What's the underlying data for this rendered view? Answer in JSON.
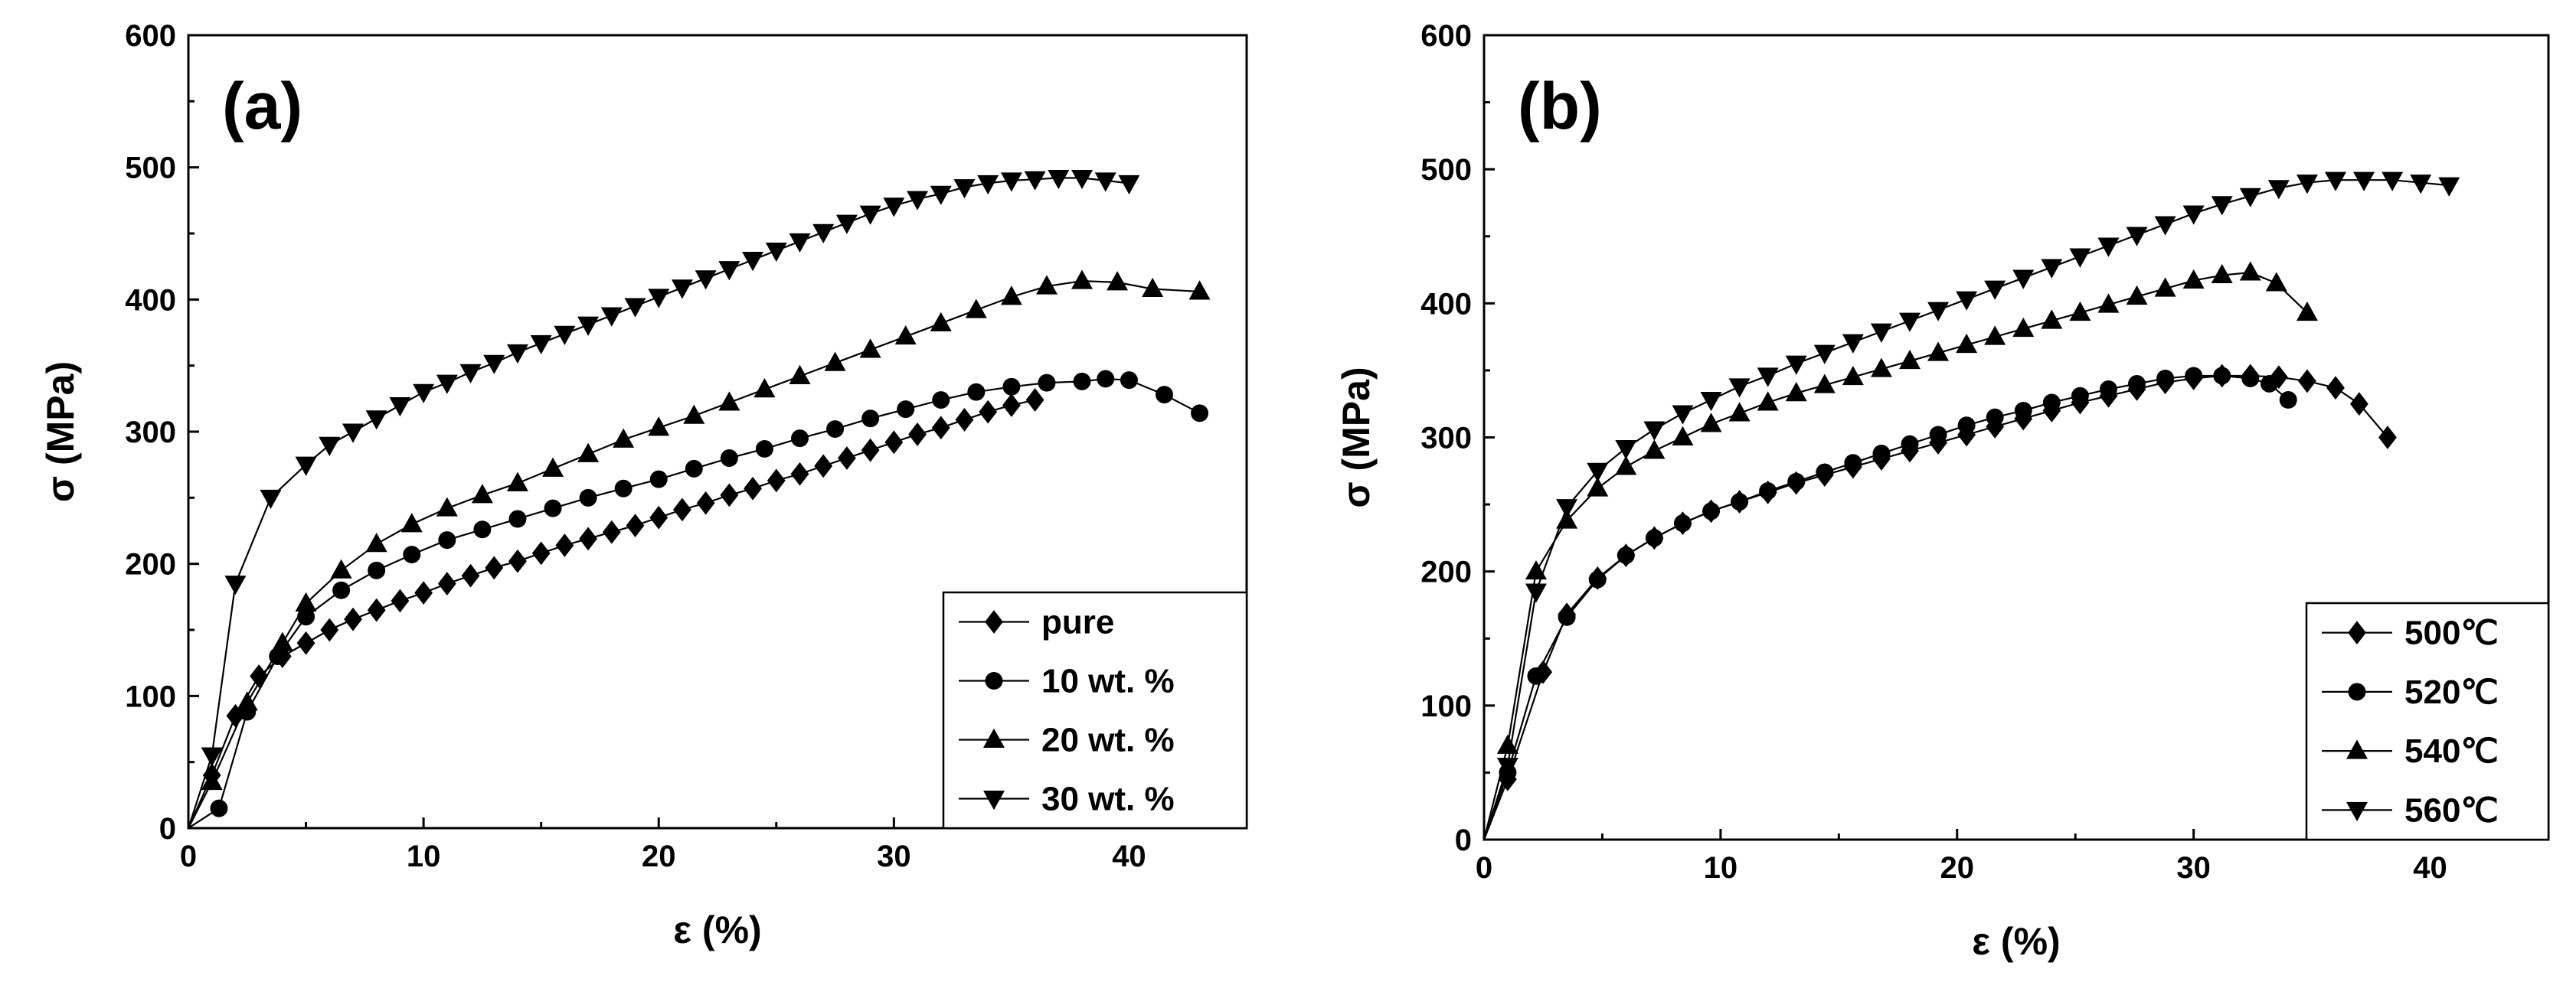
{
  "chart_data": [
    {
      "type": "line",
      "panel_label": "(a)",
      "xlabel": "ε (%)",
      "ylabel": "σ (MPa)",
      "xlim": [
        0,
        45
      ],
      "ylim": [
        0,
        600
      ],
      "xticks": [
        0,
        10,
        20,
        30,
        40
      ],
      "yticks": [
        0,
        100,
        200,
        300,
        400,
        500,
        600
      ],
      "legend_position": "bottom-right",
      "series": [
        {
          "name": "pure",
          "marker": "diamond",
          "x": [
            0,
            1,
            2,
            3,
            4,
            5,
            6,
            7,
            8,
            9,
            10,
            11,
            12,
            13,
            14,
            15,
            16,
            17,
            18,
            19,
            20,
            21,
            22,
            23,
            24,
            25,
            26,
            27,
            28,
            29,
            30,
            31,
            32,
            33,
            34,
            35,
            36
          ],
          "y": [
            0,
            40,
            85,
            115,
            130,
            140,
            150,
            158,
            165,
            172,
            178,
            185,
            191,
            197,
            202,
            208,
            214,
            219,
            224,
            229,
            235,
            241,
            246,
            252,
            257,
            263,
            268,
            274,
            280,
            286,
            292,
            298,
            303,
            309,
            315,
            320,
            324
          ]
        },
        {
          "name": "10 wt. %",
          "marker": "circle",
          "x": [
            0,
            1.3,
            2.5,
            3.8,
            5,
            6.5,
            8,
            9.5,
            11,
            12.5,
            14,
            15.5,
            17,
            18.5,
            20,
            21.5,
            23,
            24.5,
            26,
            27.5,
            29,
            30.5,
            32,
            33.5,
            35,
            36.5,
            38,
            39,
            40,
            41.5,
            43
          ],
          "y": [
            0,
            15,
            88,
            130,
            160,
            180,
            195,
            207,
            218,
            226,
            234,
            242,
            250,
            257,
            264,
            272,
            280,
            287,
            295,
            302,
            310,
            317,
            324,
            330,
            334,
            337,
            338,
            340,
            339,
            328,
            314
          ]
        },
        {
          "name": "20 wt. %",
          "marker": "triangle-up",
          "x": [
            0,
            1,
            2.5,
            4,
            5,
            6.5,
            8,
            9.5,
            11,
            12.5,
            14,
            15.5,
            17,
            18.5,
            20,
            21.5,
            23,
            24.5,
            26,
            27.5,
            29,
            30.5,
            32,
            33.5,
            35,
            36.5,
            38,
            39.5,
            41,
            43
          ],
          "y": [
            0,
            35,
            95,
            140,
            170,
            195,
            215,
            230,
            242,
            252,
            261,
            272,
            283,
            294,
            303,
            312,
            322,
            332,
            342,
            352,
            362,
            372,
            382,
            392,
            402,
            410,
            414,
            413,
            408,
            406
          ]
        },
        {
          "name": "30 wt. %",
          "marker": "triangle-down",
          "x": [
            0,
            1,
            2,
            3.5,
            5,
            6,
            7,
            8,
            9,
            10,
            11,
            12,
            13,
            14,
            15,
            16,
            17,
            18,
            19,
            20,
            21,
            22,
            23,
            24,
            25,
            26,
            27,
            28,
            29,
            30,
            31,
            32,
            33,
            34,
            35,
            36,
            37,
            38,
            39,
            40
          ],
          "y": [
            0,
            55,
            185,
            250,
            275,
            290,
            300,
            310,
            320,
            330,
            337,
            345,
            352,
            360,
            367,
            374,
            381,
            388,
            395,
            402,
            409,
            416,
            423,
            430,
            437,
            444,
            451,
            458,
            465,
            471,
            476,
            480,
            485,
            488,
            490,
            491,
            492,
            492,
            490,
            488
          ]
        }
      ]
    },
    {
      "type": "line",
      "panel_label": "(b)",
      "xlabel": "ε (%)",
      "ylabel": "σ (MPa)",
      "xlim": [
        0,
        45
      ],
      "ylim": [
        0,
        600
      ],
      "xticks": [
        0,
        10,
        20,
        30,
        40
      ],
      "yticks": [
        0,
        100,
        200,
        300,
        400,
        500,
        600
      ],
      "legend_position": "bottom-right",
      "series": [
        {
          "name": "500℃",
          "marker": "diamond",
          "x": [
            0,
            1,
            2.5,
            3.5,
            4.8,
            6,
            7.2,
            8.4,
            9.6,
            10.8,
            12,
            13.2,
            14.4,
            15.6,
            16.8,
            18,
            19.2,
            20.4,
            21.6,
            22.8,
            24,
            25.2,
            26.4,
            27.6,
            28.8,
            30,
            31.2,
            32.4,
            33.6,
            34.8,
            36,
            37,
            38.2
          ],
          "y": [
            0,
            45,
            125,
            168,
            195,
            212,
            225,
            236,
            245,
            252,
            259,
            266,
            272,
            278,
            284,
            290,
            296,
            302,
            308,
            314,
            320,
            326,
            331,
            336,
            341,
            344,
            346,
            346,
            345,
            342,
            337,
            325,
            300
          ]
        },
        {
          "name": "520℃",
          "marker": "circle",
          "x": [
            0,
            1,
            2.2,
            3.5,
            4.8,
            6,
            7.2,
            8.4,
            9.6,
            10.8,
            12,
            13.2,
            14.4,
            15.6,
            16.8,
            18,
            19.2,
            20.4,
            21.6,
            22.8,
            24,
            25.2,
            26.4,
            27.6,
            28.8,
            30,
            31.2,
            32.4,
            33.2,
            34
          ],
          "y": [
            0,
            50,
            122,
            166,
            194,
            212,
            225,
            236,
            245,
            252,
            260,
            267,
            274,
            281,
            288,
            295,
            302,
            309,
            315,
            320,
            326,
            331,
            336,
            340,
            344,
            346,
            346,
            344,
            340,
            328
          ]
        },
        {
          "name": "540℃",
          "marker": "triangle-up",
          "x": [
            0,
            1,
            2.2,
            3.5,
            4.8,
            6,
            7.2,
            8.4,
            9.6,
            10.8,
            12,
            13.2,
            14.4,
            15.6,
            16.8,
            18,
            19.2,
            20.4,
            21.6,
            22.8,
            24,
            25.2,
            26.4,
            27.6,
            28.8,
            30,
            31.2,
            32.4,
            33.5,
            34.8
          ],
          "y": [
            0,
            70,
            200,
            238,
            262,
            278,
            290,
            300,
            310,
            318,
            326,
            333,
            339,
            345,
            351,
            357,
            363,
            369,
            375,
            381,
            387,
            393,
            399,
            405,
            411,
            417,
            421,
            423,
            415,
            393
          ]
        },
        {
          "name": "560℃",
          "marker": "triangle-down",
          "x": [
            0,
            1,
            2.2,
            3.5,
            4.8,
            6,
            7.2,
            8.4,
            9.6,
            10.8,
            12,
            13.2,
            14.4,
            15.6,
            16.8,
            18,
            19.2,
            20.4,
            21.6,
            22.8,
            24,
            25.2,
            26.4,
            27.6,
            28.8,
            30,
            31.2,
            32.4,
            33.6,
            34.8,
            36,
            37.2,
            38.4,
            39.6,
            40.8
          ],
          "y": [
            0,
            55,
            185,
            248,
            275,
            292,
            306,
            318,
            328,
            338,
            346,
            355,
            363,
            371,
            379,
            387,
            395,
            403,
            411,
            419,
            427,
            435,
            443,
            451,
            459,
            467,
            474,
            480,
            486,
            490,
            492,
            492,
            492,
            490,
            488
          ]
        }
      ]
    }
  ]
}
